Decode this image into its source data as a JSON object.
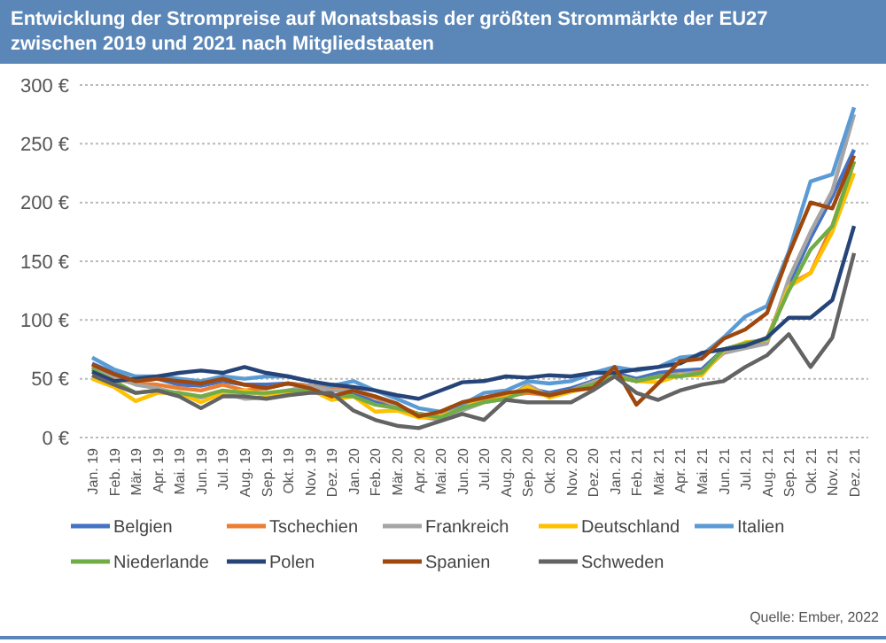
{
  "chart_data": {
    "type": "line",
    "title": "Entwicklung der Strompreise auf Monatsbasis der größten Strommärkte der EU27 zwischen 2019 und 2021 nach Mitgliedstaaten",
    "categories": [
      "Jan. 19",
      "Feb. 19",
      "Mär. 19",
      "Apr. 19",
      "Mai. 19",
      "Jun. 19",
      "Jul. 19",
      "Aug. 19",
      "Sep. 19",
      "Okt. 19",
      "Nov. 19",
      "Dez. 19",
      "Jan. 20",
      "Feb. 20",
      "Mär. 20",
      "Apr. 20",
      "Mai. 20",
      "Jun. 20",
      "Jul. 20",
      "Aug. 20",
      "Sep. 20",
      "Okt. 20",
      "Nov. 20",
      "Dez. 20",
      "Jan. 21",
      "Feb. 21",
      "Mär. 21",
      "Apr. 21",
      "Mai. 21",
      "Jun. 21",
      "Jul. 21",
      "Aug. 21",
      "Sep. 21",
      "Okt. 21",
      "Nov. 21",
      "Dez. 21"
    ],
    "series": [
      {
        "name": "Belgien",
        "color": "#4472c4",
        "values": [
          63,
          55,
          48,
          50,
          45,
          44,
          48,
          45,
          45,
          46,
          44,
          42,
          38,
          30,
          25,
          20,
          18,
          28,
          33,
          36,
          42,
          38,
          42,
          48,
          55,
          50,
          55,
          57,
          58,
          75,
          80,
          82,
          130,
          170,
          205,
          245
        ]
      },
      {
        "name": "Tschechien",
        "color": "#ed7d31",
        "values": [
          60,
          50,
          46,
          45,
          42,
          40,
          45,
          40,
          42,
          46,
          44,
          42,
          40,
          34,
          27,
          20,
          18,
          25,
          32,
          35,
          38,
          36,
          40,
          47,
          52,
          48,
          52,
          54,
          56,
          72,
          78,
          84,
          130,
          140,
          180,
          235
        ]
      },
      {
        "name": "Frankreich",
        "color": "#a5a5a5",
        "values": [
          60,
          52,
          45,
          42,
          37,
          34,
          38,
          33,
          34,
          40,
          44,
          40,
          40,
          35,
          27,
          18,
          15,
          23,
          30,
          33,
          45,
          35,
          40,
          47,
          52,
          48,
          52,
          54,
          55,
          72,
          76,
          80,
          135,
          175,
          210,
          275
        ]
      },
      {
        "name": "Deutschland",
        "color": "#ffc000",
        "values": [
          50,
          43,
          31,
          38,
          38,
          30,
          38,
          40,
          36,
          37,
          41,
          32,
          35,
          22,
          23,
          17,
          18,
          27,
          30,
          34,
          43,
          34,
          39,
          43,
          53,
          48,
          47,
          53,
          53,
          74,
          81,
          83,
          128,
          140,
          175,
          225
        ]
      },
      {
        "name": "Italien",
        "color": "#5b9bd5",
        "values": [
          68,
          58,
          52,
          52,
          50,
          48,
          52,
          50,
          52,
          52,
          48,
          44,
          48,
          40,
          33,
          25,
          22,
          28,
          38,
          40,
          48,
          46,
          48,
          55,
          60,
          57,
          60,
          68,
          70,
          85,
          103,
          112,
          158,
          218,
          224,
          281
        ]
      },
      {
        "name": "Niederlande",
        "color": "#70ad47",
        "values": [
          58,
          48,
          38,
          40,
          38,
          35,
          40,
          38,
          38,
          40,
          40,
          36,
          35,
          28,
          25,
          20,
          17,
          25,
          30,
          33,
          40,
          36,
          40,
          45,
          52,
          48,
          52,
          52,
          55,
          75,
          80,
          84,
          125,
          160,
          180,
          235
        ]
      },
      {
        "name": "Polen",
        "color": "#264478",
        "values": [
          56,
          48,
          50,
          52,
          55,
          57,
          55,
          60,
          55,
          52,
          48,
          45,
          43,
          40,
          36,
          33,
          40,
          47,
          48,
          52,
          51,
          53,
          52,
          55,
          55,
          58,
          60,
          63,
          72,
          75,
          78,
          85,
          102,
          102,
          117,
          180
        ]
      },
      {
        "name": "Spanien",
        "color": "#9e480e",
        "values": [
          62,
          54,
          48,
          50,
          48,
          46,
          50,
          45,
          42,
          46,
          42,
          35,
          40,
          35,
          29,
          18,
          22,
          30,
          34,
          38,
          40,
          36,
          40,
          42,
          60,
          28,
          46,
          65,
          67,
          84,
          92,
          106,
          156,
          200,
          195,
          240
        ]
      },
      {
        "name": "Schweden",
        "color": "#636363",
        "values": [
          53,
          45,
          38,
          40,
          35,
          25,
          35,
          35,
          33,
          36,
          38,
          38,
          23,
          15,
          10,
          8,
          14,
          20,
          15,
          32,
          30,
          30,
          30,
          40,
          52,
          38,
          32,
          40,
          45,
          48,
          60,
          70,
          88,
          60,
          85,
          157
        ]
      }
    ],
    "ylim": [
      0,
      300
    ],
    "yticks": [
      {
        "value": 0,
        "label": "0 €"
      },
      {
        "value": 50,
        "label": "50 €"
      },
      {
        "value": 100,
        "label": "100 €"
      },
      {
        "value": 150,
        "label": "150 €"
      },
      {
        "value": 200,
        "label": "200 €"
      },
      {
        "value": 250,
        "label": "250 €"
      },
      {
        "value": 300,
        "label": "300 €"
      }
    ],
    "grid": "y",
    "legend": "bottom",
    "marker": "none",
    "line_style": "solid",
    "annotations": [
      "Quelle: Ember, 2022"
    ]
  }
}
